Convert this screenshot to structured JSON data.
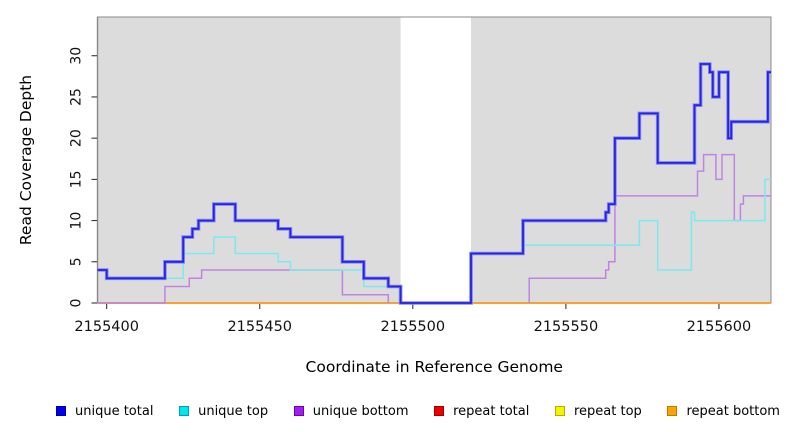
{
  "figure": {
    "background": "#ffffff",
    "plot_bg": "#dcdcdc",
    "axis_color": "#222222",
    "border_color": "#8a8a8a",
    "tick_label_color": "#111111",
    "mask_color": "#ffffff"
  },
  "chart_data": {
    "type": "line",
    "subtype": "step",
    "title": "",
    "xlabel": "Coordinate in Reference Genome",
    "ylabel": "Read Coverage Depth",
    "xlim": [
      2155397,
      2155617
    ],
    "ylim": [
      0,
      34.7
    ],
    "x_ticks": [
      2155400,
      2155450,
      2155500,
      2155550,
      2155600
    ],
    "y_ticks": [
      0,
      5,
      10,
      15,
      20,
      25,
      30
    ],
    "grid": false,
    "legend_position": "bottom",
    "masked_region": [
      2155496,
      2155519
    ],
    "series": [
      {
        "name": "repeat total",
        "color": "#e03030",
        "line_width": 1.5,
        "steps": [
          [
            2155397,
            0
          ],
          [
            2155617,
            0
          ]
        ]
      },
      {
        "name": "repeat top",
        "color": "#eeee00",
        "line_width": 1.5,
        "steps": [
          [
            2155397,
            0
          ],
          [
            2155617,
            0
          ]
        ]
      },
      {
        "name": "repeat bottom",
        "color": "#ff9d30",
        "line_width": 1.8,
        "steps": [
          [
            2155397,
            0
          ],
          [
            2155617,
            0
          ]
        ]
      },
      {
        "name": "unique bottom",
        "color": "#c183e2",
        "line_width": 1.5,
        "steps": [
          [
            2155397,
            0
          ],
          [
            2155419,
            2
          ],
          [
            2155427,
            3
          ],
          [
            2155431,
            4
          ],
          [
            2155477,
            1
          ],
          [
            2155492,
            0
          ],
          [
            2155496,
            null
          ],
          [
            2155538,
            0
          ],
          [
            2155538,
            3
          ],
          [
            2155563,
            4
          ],
          [
            2155564,
            5
          ],
          [
            2155566,
            13
          ],
          [
            2155593,
            16
          ],
          [
            2155595,
            18
          ],
          [
            2155599,
            15
          ],
          [
            2155601,
            18
          ],
          [
            2155605,
            10
          ],
          [
            2155607,
            12
          ],
          [
            2155608,
            13
          ],
          [
            2155617,
            13
          ]
        ]
      },
      {
        "name": "unique top",
        "color": "#7de9ef",
        "line_width": 1.5,
        "steps": [
          [
            2155397,
            4
          ],
          [
            2155400,
            3
          ],
          [
            2155425,
            6
          ],
          [
            2155435,
            8
          ],
          [
            2155442,
            6
          ],
          [
            2155456,
            5
          ],
          [
            2155460,
            4
          ],
          [
            2155484,
            2
          ],
          [
            2155496,
            0
          ],
          [
            2155519,
            6
          ],
          [
            2155536,
            7
          ],
          [
            2155574,
            10
          ],
          [
            2155580,
            4
          ],
          [
            2155591,
            11
          ],
          [
            2155592,
            10
          ],
          [
            2155615,
            15
          ],
          [
            2155617,
            15
          ]
        ]
      },
      {
        "name": "unique total",
        "color": "#2525dd",
        "halo_color": "#8585f8",
        "halo_width": 3.6,
        "line_width": 1.8,
        "steps": [
          [
            2155397,
            4
          ],
          [
            2155400,
            3
          ],
          [
            2155419,
            5
          ],
          [
            2155425,
            8
          ],
          [
            2155428,
            9
          ],
          [
            2155430,
            10
          ],
          [
            2155435,
            12
          ],
          [
            2155442,
            10
          ],
          [
            2155456,
            9
          ],
          [
            2155460,
            8
          ],
          [
            2155477,
            5
          ],
          [
            2155484,
            3
          ],
          [
            2155492,
            2
          ],
          [
            2155496,
            0
          ],
          [
            2155519,
            6
          ],
          [
            2155536,
            10
          ],
          [
            2155563,
            11
          ],
          [
            2155564,
            12
          ],
          [
            2155566,
            20
          ],
          [
            2155574,
            23
          ],
          [
            2155580,
            17
          ],
          [
            2155592,
            24
          ],
          [
            2155594,
            29
          ],
          [
            2155597,
            28
          ],
          [
            2155598,
            25
          ],
          [
            2155600,
            28
          ],
          [
            2155603,
            20
          ],
          [
            2155604,
            22
          ],
          [
            2155616,
            28
          ],
          [
            2155617,
            28
          ]
        ]
      }
    ]
  },
  "legend": {
    "items": [
      {
        "label": "unique total",
        "color": "#0000ee",
        "border": "#0000a0"
      },
      {
        "label": "unique top",
        "color": "#00e5ee",
        "border": "#00a0b0"
      },
      {
        "label": "unique bottom",
        "color": "#a020f0",
        "border": "#7000b0"
      },
      {
        "label": "repeat total",
        "color": "#ee0000",
        "border": "#a00000"
      },
      {
        "label": "repeat top",
        "color": "#f5f500",
        "border": "#b0b000"
      },
      {
        "label": "repeat bottom",
        "color": "#ffa500",
        "border": "#c07800"
      }
    ]
  }
}
